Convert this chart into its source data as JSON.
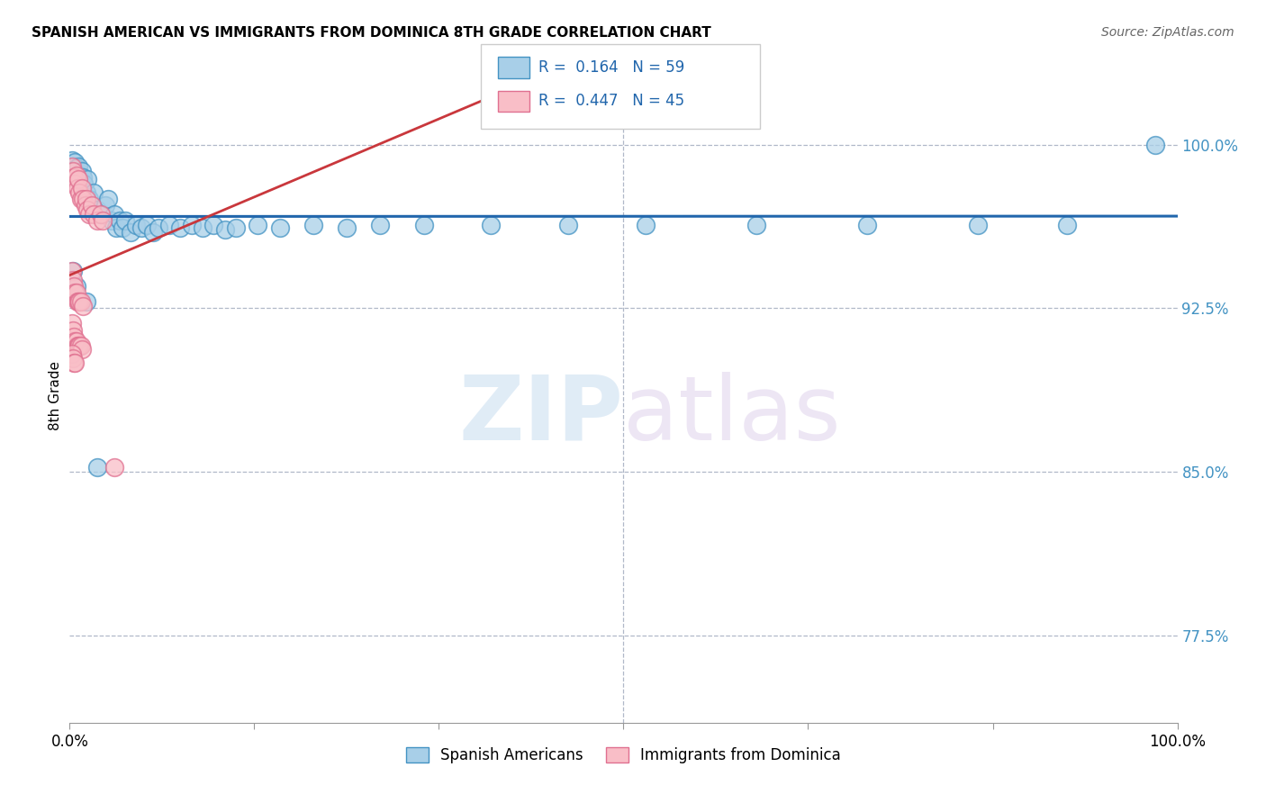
{
  "title": "SPANISH AMERICAN VS IMMIGRANTS FROM DOMINICA 8TH GRADE CORRELATION CHART",
  "source": "Source: ZipAtlas.com",
  "ylabel": "8th Grade",
  "ytick_labels": [
    "100.0%",
    "92.5%",
    "85.0%",
    "77.5%"
  ],
  "ytick_values": [
    1.0,
    0.925,
    0.85,
    0.775
  ],
  "xlim": [
    0.0,
    1.0
  ],
  "ylim": [
    0.735,
    1.035
  ],
  "r_blue": 0.164,
  "n_blue": 59,
  "r_pink": 0.447,
  "n_pink": 45,
  "blue_scatter_color": "#a8cfe8",
  "blue_scatter_edge": "#4393c3",
  "pink_scatter_color": "#f9bec7",
  "pink_scatter_edge": "#e07090",
  "blue_line_color": "#2166ac",
  "pink_line_color": "#c9373c",
  "legend_text_color": "#2166ac",
  "ytick_color": "#4393c3",
  "legend_label_blue": "Spanish Americans",
  "legend_label_pink": "Immigrants from Dominica",
  "watermark_zip": "ZIP",
  "watermark_atlas": "atlas",
  "blue_scatter_x": [
    0.002,
    0.003,
    0.004,
    0.005,
    0.006,
    0.007,
    0.008,
    0.009,
    0.01,
    0.011,
    0.012,
    0.013,
    0.015,
    0.016,
    0.018,
    0.02,
    0.022,
    0.025,
    0.028,
    0.03,
    0.032,
    0.035,
    0.038,
    0.04,
    0.042,
    0.045,
    0.048,
    0.05,
    0.055,
    0.06,
    0.065,
    0.07,
    0.075,
    0.08,
    0.09,
    0.1,
    0.11,
    0.12,
    0.13,
    0.14,
    0.15,
    0.17,
    0.19,
    0.22,
    0.25,
    0.28,
    0.32,
    0.38,
    0.45,
    0.52,
    0.62,
    0.72,
    0.82,
    0.9,
    0.003,
    0.006,
    0.015,
    0.025,
    0.98
  ],
  "blue_scatter_y": [
    0.993,
    0.99,
    0.988,
    0.992,
    0.989,
    0.985,
    0.99,
    0.986,
    0.983,
    0.988,
    0.985,
    0.982,
    0.978,
    0.984,
    0.975,
    0.972,
    0.978,
    0.97,
    0.968,
    0.968,
    0.972,
    0.975,
    0.965,
    0.968,
    0.962,
    0.965,
    0.962,
    0.965,
    0.96,
    0.963,
    0.962,
    0.963,
    0.96,
    0.962,
    0.963,
    0.962,
    0.963,
    0.962,
    0.963,
    0.961,
    0.962,
    0.963,
    0.962,
    0.963,
    0.962,
    0.963,
    0.963,
    0.963,
    0.963,
    0.963,
    0.963,
    0.963,
    0.963,
    0.963,
    0.942,
    0.935,
    0.928,
    0.852,
    1.0
  ],
  "pink_scatter_x": [
    0.002,
    0.003,
    0.004,
    0.005,
    0.006,
    0.007,
    0.008,
    0.009,
    0.01,
    0.011,
    0.012,
    0.014,
    0.015,
    0.016,
    0.018,
    0.02,
    0.022,
    0.025,
    0.028,
    0.03,
    0.002,
    0.003,
    0.004,
    0.005,
    0.006,
    0.007,
    0.008,
    0.009,
    0.01,
    0.012,
    0.002,
    0.003,
    0.004,
    0.005,
    0.006,
    0.007,
    0.008,
    0.009,
    0.01,
    0.011,
    0.002,
    0.003,
    0.004,
    0.005,
    0.04
  ],
  "pink_scatter_y": [
    0.99,
    0.988,
    0.985,
    0.982,
    0.986,
    0.98,
    0.984,
    0.978,
    0.975,
    0.98,
    0.975,
    0.972,
    0.975,
    0.97,
    0.968,
    0.972,
    0.968,
    0.965,
    0.968,
    0.965,
    0.942,
    0.938,
    0.935,
    0.932,
    0.932,
    0.928,
    0.928,
    0.928,
    0.928,
    0.926,
    0.918,
    0.915,
    0.912,
    0.91,
    0.91,
    0.908,
    0.908,
    0.908,
    0.908,
    0.906,
    0.904,
    0.902,
    0.9,
    0.9,
    0.852
  ]
}
